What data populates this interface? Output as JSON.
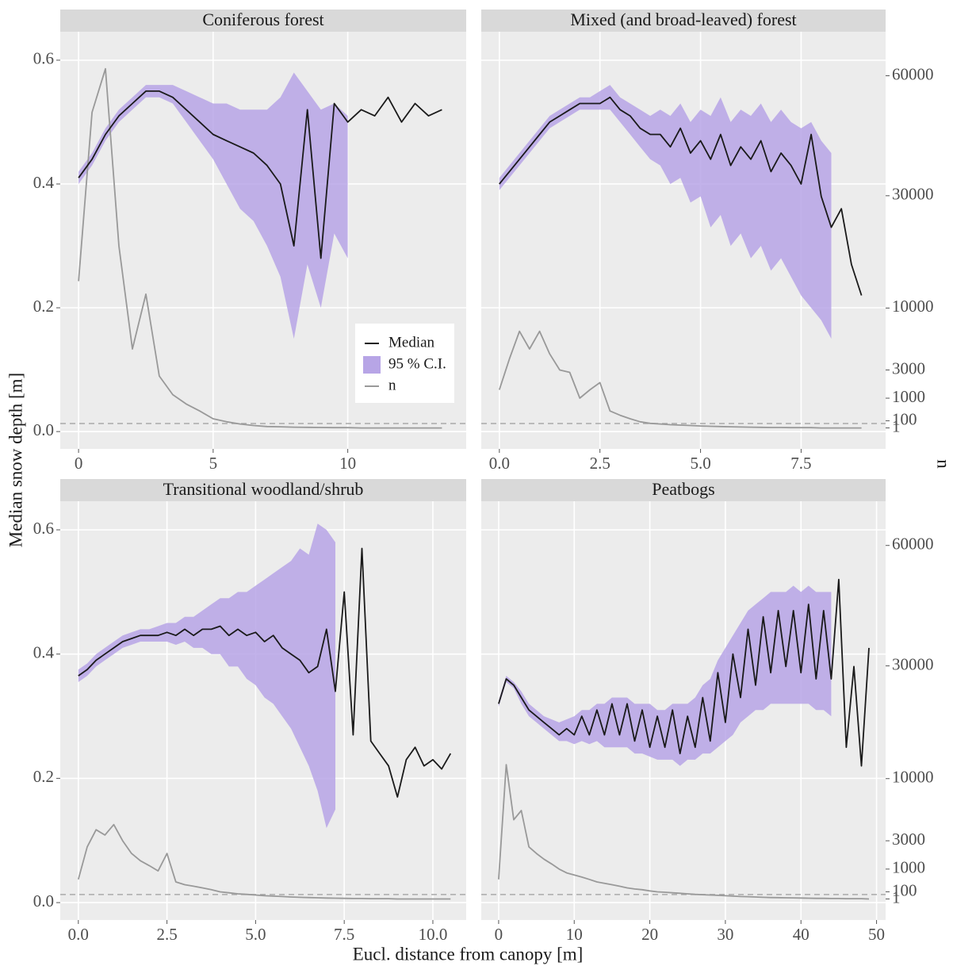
{
  "labels": {
    "x": "Eucl. distance from canopy [m]",
    "y": "Median snow depth [m]",
    "y2": "n"
  },
  "chart_data": [
    {
      "type": "line",
      "title": "Coniferous forest",
      "legend": "right",
      "xlim": [
        -0.68,
        14.4
      ],
      "xticks": [
        0,
        5,
        10
      ],
      "ylim": [
        -0.028,
        0.646
      ],
      "yticks": [
        {
          "value": 0,
          "label": "0.0"
        },
        {
          "value": 0.2,
          "label": "0.2"
        },
        {
          "value": 0.4,
          "label": "0.4"
        },
        {
          "value": 0.6,
          "label": "0.6"
        }
      ],
      "y2lim": [
        -523,
        73000
      ],
      "y2scale": "power",
      "y2exponent": 0.6,
      "reference_line": 0.013,
      "grid": true,
      "x": [
        0,
        0.5,
        1,
        1.5,
        2,
        2.5,
        3,
        3.5,
        4,
        4.5,
        5,
        5.5,
        6,
        6.5,
        7,
        7.5,
        8,
        8.5,
        9,
        9.5,
        10,
        10.5,
        11,
        11.5,
        12,
        12.5,
        13,
        13.5
      ],
      "series": [
        {
          "name": "95 % C.I.",
          "color": "#b7a5e6",
          "lower": [
            0.4,
            0.43,
            0.47,
            0.5,
            0.52,
            0.54,
            0.54,
            0.53,
            0.5,
            0.47,
            0.44,
            0.4,
            0.36,
            0.34,
            0.3,
            0.25,
            0.15,
            0.27,
            0.2,
            0.32,
            0.28,
            null,
            null,
            null,
            null,
            null,
            null,
            null
          ],
          "upper": [
            0.42,
            0.45,
            0.49,
            0.52,
            0.54,
            0.56,
            0.56,
            0.56,
            0.55,
            0.54,
            0.53,
            0.53,
            0.52,
            0.52,
            0.52,
            0.54,
            0.58,
            0.55,
            0.52,
            0.53,
            0.51,
            null,
            null,
            null,
            null,
            null,
            null,
            null
          ]
        },
        {
          "name": "n",
          "color": "#999999",
          "axis": "y2",
          "values": [
            14000,
            50000,
            62000,
            20000,
            5000,
            12000,
            2500,
            1200,
            700,
            400,
            150,
            80,
            40,
            20,
            10,
            8,
            5,
            4,
            3,
            2,
            2,
            1,
            1,
            1,
            1,
            1,
            1,
            1
          ]
        },
        {
          "name": "Median",
          "color": "#1a1a1a",
          "values": [
            0.41,
            0.44,
            0.48,
            0.51,
            0.53,
            0.55,
            0.55,
            0.54,
            0.52,
            0.5,
            0.48,
            0.47,
            0.46,
            0.45,
            0.43,
            0.4,
            0.3,
            0.52,
            0.28,
            0.53,
            0.5,
            0.52,
            0.51,
            0.54,
            0.5,
            0.53,
            0.51,
            0.52
          ]
        }
      ]
    },
    {
      "type": "line",
      "title": "Mixed (and broad-leaved) forest",
      "xlim": [
        -0.45,
        9.6
      ],
      "xticks": [
        {
          "value": 0,
          "label": "0.0"
        },
        {
          "value": 2.5,
          "label": "2.5"
        },
        {
          "value": 5,
          "label": "5.0"
        },
        {
          "value": 7.5,
          "label": "7.5"
        }
      ],
      "ylim": [
        -0.028,
        0.646
      ],
      "yticks": [
        0,
        0.2,
        0.4,
        0.6
      ],
      "y2lim": [
        -523,
        73000
      ],
      "y2scale": "power",
      "y2exponent": 0.6,
      "y2ticks": [
        1,
        100,
        1000,
        3000,
        10000,
        30000,
        60000
      ],
      "reference_line": 0.013,
      "grid": true,
      "x": [
        0,
        0.25,
        0.5,
        0.75,
        1,
        1.25,
        1.5,
        1.75,
        2,
        2.25,
        2.5,
        2.75,
        3,
        3.25,
        3.5,
        3.75,
        4,
        4.25,
        4.5,
        4.75,
        5,
        5.25,
        5.5,
        5.75,
        6,
        6.25,
        6.5,
        6.75,
        7,
        7.25,
        7.5,
        7.75,
        8,
        8.25,
        8.5,
        8.75,
        9
      ],
      "series": [
        {
          "name": "95 % C.I.",
          "color": "#b7a5e6",
          "lower": [
            0.39,
            0.41,
            0.43,
            0.45,
            0.47,
            0.49,
            0.5,
            0.51,
            0.52,
            0.52,
            0.52,
            0.52,
            0.5,
            0.48,
            0.46,
            0.44,
            0.43,
            0.4,
            0.41,
            0.37,
            0.38,
            0.33,
            0.35,
            0.3,
            0.32,
            0.28,
            0.3,
            0.26,
            0.28,
            0.25,
            0.22,
            0.2,
            0.18,
            0.15,
            null,
            null,
            null
          ],
          "upper": [
            0.41,
            0.43,
            0.45,
            0.47,
            0.49,
            0.51,
            0.52,
            0.53,
            0.54,
            0.54,
            0.55,
            0.56,
            0.54,
            0.53,
            0.52,
            0.51,
            0.52,
            0.51,
            0.53,
            0.5,
            0.52,
            0.51,
            0.54,
            0.5,
            0.52,
            0.51,
            0.53,
            0.5,
            0.52,
            0.5,
            0.49,
            0.5,
            0.47,
            0.45,
            null,
            null,
            null
          ]
        },
        {
          "name": "n",
          "color": "#999999",
          "axis": "y2",
          "values": [
            1500,
            4000,
            7000,
            5000,
            7000,
            4500,
            3000,
            2800,
            1000,
            1500,
            2000,
            400,
            250,
            150,
            80,
            50,
            40,
            30,
            25,
            20,
            15,
            12,
            10,
            8,
            6,
            5,
            4,
            3,
            3,
            2,
            2,
            2,
            1,
            1,
            1,
            1,
            1
          ]
        },
        {
          "name": "Median",
          "color": "#1a1a1a",
          "values": [
            0.4,
            0.42,
            0.44,
            0.46,
            0.48,
            0.5,
            0.51,
            0.52,
            0.53,
            0.53,
            0.53,
            0.54,
            0.52,
            0.51,
            0.49,
            0.48,
            0.48,
            0.46,
            0.49,
            0.45,
            0.47,
            0.44,
            0.48,
            0.43,
            0.46,
            0.44,
            0.47,
            0.42,
            0.45,
            0.43,
            0.4,
            0.48,
            0.38,
            0.33,
            0.36,
            0.27,
            0.22
          ]
        }
      ]
    },
    {
      "type": "line",
      "title": "Transitional woodland/shrub",
      "xlim": [
        -0.51,
        10.94
      ],
      "xticks": [
        {
          "value": 0,
          "label": "0.0"
        },
        {
          "value": 2.5,
          "label": "2.5"
        },
        {
          "value": 5,
          "label": "5.0"
        },
        {
          "value": 7.5,
          "label": "7.5"
        },
        {
          "value": 10,
          "label": "10.0"
        }
      ],
      "ylim": [
        -0.028,
        0.646
      ],
      "yticks": [
        {
          "value": 0,
          "label": "0.0"
        },
        {
          "value": 0.2,
          "label": "0.2"
        },
        {
          "value": 0.4,
          "label": "0.4"
        },
        {
          "value": 0.6,
          "label": "0.6"
        }
      ],
      "y2lim": [
        -523,
        73000
      ],
      "y2scale": "power",
      "y2exponent": 0.6,
      "reference_line": 0.013,
      "grid": true,
      "x": [
        0,
        0.25,
        0.5,
        0.75,
        1,
        1.25,
        1.5,
        1.75,
        2,
        2.25,
        2.5,
        2.75,
        3,
        3.25,
        3.5,
        3.75,
        4,
        4.25,
        4.5,
        4.75,
        5,
        5.25,
        5.5,
        5.75,
        6,
        6.25,
        6.5,
        6.75,
        7,
        7.25,
        7.5,
        7.75,
        8,
        8.25,
        8.5,
        8.75,
        9,
        9.25,
        9.5,
        9.75,
        10,
        10.25,
        10.5
      ],
      "series": [
        {
          "name": "95 % C.I.",
          "color": "#b7a5e6",
          "lower": [
            0.355,
            0.365,
            0.38,
            0.39,
            0.4,
            0.41,
            0.415,
            0.42,
            0.42,
            0.42,
            0.42,
            0.415,
            0.42,
            0.41,
            0.41,
            0.4,
            0.4,
            0.38,
            0.38,
            0.36,
            0.35,
            0.33,
            0.32,
            0.3,
            0.28,
            0.25,
            0.22,
            0.18,
            0.12,
            0.15,
            null,
            null,
            null,
            null,
            null,
            null,
            null,
            null,
            null,
            null,
            null,
            null,
            null
          ],
          "upper": [
            0.375,
            0.385,
            0.4,
            0.41,
            0.42,
            0.43,
            0.435,
            0.44,
            0.44,
            0.445,
            0.45,
            0.45,
            0.46,
            0.46,
            0.47,
            0.48,
            0.49,
            0.49,
            0.5,
            0.5,
            0.51,
            0.52,
            0.53,
            0.54,
            0.55,
            0.57,
            0.56,
            0.61,
            0.6,
            0.58,
            null,
            null,
            null,
            null,
            null,
            null,
            null,
            null,
            null,
            null,
            null,
            null,
            null
          ]
        },
        {
          "name": "n",
          "color": "#999999",
          "axis": "y2",
          "values": [
            500,
            2500,
            4000,
            3500,
            4500,
            3000,
            2000,
            1500,
            1200,
            900,
            2000,
            400,
            300,
            250,
            200,
            150,
            100,
            80,
            60,
            50,
            40,
            30,
            25,
            20,
            15,
            12,
            10,
            8,
            6,
            5,
            4,
            3,
            3,
            2,
            2,
            2,
            1,
            1,
            1,
            1,
            1,
            1,
            1
          ]
        },
        {
          "name": "Median",
          "color": "#1a1a1a",
          "values": [
            0.365,
            0.375,
            0.39,
            0.4,
            0.41,
            0.42,
            0.425,
            0.43,
            0.43,
            0.43,
            0.435,
            0.43,
            0.44,
            0.43,
            0.44,
            0.44,
            0.445,
            0.43,
            0.44,
            0.43,
            0.435,
            0.42,
            0.43,
            0.41,
            0.4,
            0.39,
            0.37,
            0.38,
            0.44,
            0.34,
            0.5,
            0.27,
            0.57,
            0.26,
            0.24,
            0.22,
            0.17,
            0.23,
            0.25,
            0.22,
            0.23,
            0.215,
            0.24
          ]
        }
      ]
    },
    {
      "type": "line",
      "title": "Peatbogs",
      "xlim": [
        -2.3,
        51.2
      ],
      "xticks": [
        0,
        10,
        20,
        30,
        40,
        50
      ],
      "ylim": [
        -0.028,
        0.646
      ],
      "yticks": [
        0,
        0.2,
        0.4,
        0.6
      ],
      "y2lim": [
        -523,
        73000
      ],
      "y2scale": "power",
      "y2exponent": 0.6,
      "y2ticks": [
        1,
        100,
        1000,
        3000,
        10000,
        30000,
        60000
      ],
      "reference_line": 0.013,
      "grid": true,
      "x": [
        0,
        1,
        2,
        3,
        4,
        5,
        6,
        7,
        8,
        9,
        10,
        11,
        12,
        13,
        14,
        15,
        16,
        17,
        18,
        19,
        20,
        21,
        22,
        23,
        24,
        25,
        26,
        27,
        28,
        29,
        30,
        31,
        32,
        33,
        34,
        35,
        36,
        37,
        38,
        39,
        40,
        41,
        42,
        43,
        44,
        45,
        46,
        47,
        48,
        49
      ],
      "series": [
        {
          "name": "95 % C.I.",
          "color": "#b7a5e6",
          "lower": [
            0.315,
            0.355,
            0.345,
            0.32,
            0.3,
            0.29,
            0.28,
            0.27,
            0.26,
            0.26,
            0.255,
            0.26,
            0.255,
            0.26,
            0.25,
            0.25,
            0.25,
            0.25,
            0.24,
            0.24,
            0.235,
            0.23,
            0.23,
            0.23,
            0.22,
            0.23,
            0.23,
            0.24,
            0.24,
            0.25,
            0.26,
            0.27,
            0.29,
            0.3,
            0.31,
            0.31,
            0.32,
            0.32,
            0.32,
            0.32,
            0.32,
            0.32,
            0.31,
            0.31,
            0.3,
            null,
            null,
            null,
            null,
            null
          ],
          "upper": [
            0.325,
            0.365,
            0.355,
            0.34,
            0.32,
            0.31,
            0.3,
            0.295,
            0.29,
            0.295,
            0.3,
            0.31,
            0.31,
            0.32,
            0.32,
            0.33,
            0.33,
            0.33,
            0.32,
            0.32,
            0.32,
            0.31,
            0.31,
            0.32,
            0.32,
            0.32,
            0.33,
            0.35,
            0.36,
            0.39,
            0.41,
            0.43,
            0.45,
            0.47,
            0.48,
            0.49,
            0.5,
            0.5,
            0.5,
            0.51,
            0.5,
            0.51,
            0.5,
            0.5,
            0.5,
            null,
            null,
            null,
            null,
            null
          ]
        },
        {
          "name": "n",
          "color": "#999999",
          "axis": "y2",
          "values": [
            500,
            12000,
            5000,
            6000,
            2500,
            2000,
            1600,
            1300,
            1000,
            800,
            700,
            600,
            500,
            400,
            350,
            300,
            250,
            200,
            170,
            150,
            120,
            100,
            90,
            80,
            70,
            60,
            50,
            45,
            40,
            35,
            30,
            25,
            20,
            18,
            15,
            12,
            10,
            9,
            8,
            7,
            6,
            5,
            4,
            4,
            3,
            3,
            2,
            2,
            2,
            1
          ]
        },
        {
          "name": "Median",
          "color": "#1a1a1a",
          "values": [
            0.32,
            0.36,
            0.35,
            0.33,
            0.31,
            0.3,
            0.29,
            0.28,
            0.27,
            0.28,
            0.27,
            0.3,
            0.27,
            0.31,
            0.27,
            0.32,
            0.27,
            0.32,
            0.26,
            0.31,
            0.25,
            0.3,
            0.25,
            0.31,
            0.24,
            0.3,
            0.25,
            0.33,
            0.26,
            0.37,
            0.29,
            0.4,
            0.33,
            0.44,
            0.35,
            0.46,
            0.37,
            0.47,
            0.38,
            0.47,
            0.37,
            0.48,
            0.36,
            0.47,
            0.36,
            0.52,
            0.25,
            0.38,
            0.22,
            0.41
          ]
        }
      ]
    }
  ]
}
